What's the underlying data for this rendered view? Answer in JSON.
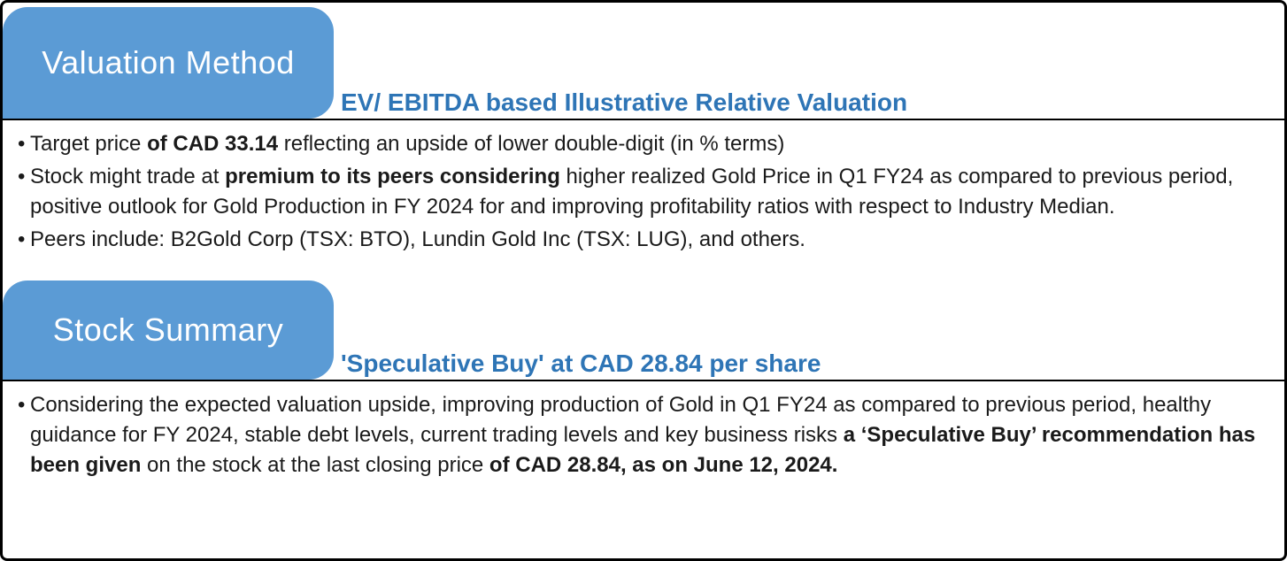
{
  "colors": {
    "tab_blue": "#5B9BD5",
    "heading_blue": "#2E75B6",
    "body_text": "#1a1a1a",
    "border": "#000000"
  },
  "sections": [
    {
      "tab_label": "Valuation Method",
      "subtitle": "EV/ EBITDA based Illustrative Relative Valuation",
      "bullets": [
        [
          {
            "t": "Target price ",
            "b": false
          },
          {
            "t": "of CAD 33.14",
            "b": true
          },
          {
            "t": " reflecting an upside of lower double-digit (in % terms)",
            "b": false
          }
        ],
        [
          {
            "t": "Stock might trade at ",
            "b": false
          },
          {
            "t": "premium to its peers considering",
            "b": true
          },
          {
            "t": " higher realized Gold Price in Q1 FY24 as compared to previous period, positive outlook for Gold Production in FY 2024 for and improving profitability ratios with respect to Industry Median.",
            "b": false
          }
        ],
        [
          {
            "t": "Peers include:  B2Gold Corp (TSX: BTO), Lundin Gold Inc (TSX: LUG), and others.",
            "b": false
          }
        ]
      ]
    },
    {
      "tab_label": "Stock Summary",
      "subtitle": "'Speculative Buy' at CAD 28.84 per share",
      "bullets": [
        [
          {
            "t": "Considering the expected valuation upside, improving production of Gold in Q1 FY24 as compared to previous period, healthy guidance for FY 2024, stable debt levels, current trading levels and key business risks ",
            "b": false
          },
          {
            "t": "a ‘Speculative Buy’ recommendation has been given",
            "b": true
          },
          {
            "t": " on the stock at the last closing price ",
            "b": false
          },
          {
            "t": "of CAD 28.84, as on June 12, 2024.",
            "b": true
          }
        ]
      ]
    }
  ]
}
